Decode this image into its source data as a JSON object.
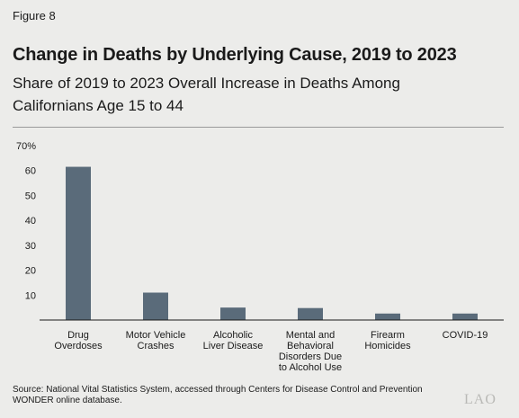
{
  "figure_label": "Figure 8",
  "title": "Change in Deaths by Underlying Cause, 2019 to 2023",
  "subtitle": "Share of 2019 to 2023 Overall Increase in Deaths Among Californians Age 15 to 44",
  "source": "Source: National Vital Statistics System, accessed through Centers for Disease Control and Prevention WONDER online database.",
  "logo_text": "LAO",
  "colors": {
    "bar": "#5a6b7a",
    "background": "#ececea",
    "axis": "#1a1a1a"
  },
  "chart_data": {
    "type": "bar",
    "title": "",
    "xlabel": "",
    "ylabel": "",
    "ylim": [
      0,
      70
    ],
    "yticks": [
      "70%",
      "60",
      "50",
      "40",
      "30",
      "20",
      "10"
    ],
    "ytick_values": [
      70,
      60,
      50,
      40,
      30,
      20,
      10
    ],
    "categories": [
      [
        "Drug",
        "Overdoses"
      ],
      [
        "Motor Vehicle",
        "Crashes"
      ],
      [
        "Alcoholic",
        "Liver Disease"
      ],
      [
        "Mental and",
        "Behavioral",
        "Disorders Due",
        "to Alcohol Use"
      ],
      [
        "Firearm",
        "Homicides"
      ],
      [
        "COVID-19"
      ]
    ],
    "values": [
      61.5,
      11,
      5,
      4.8,
      2.6,
      2.6
    ],
    "grid": false,
    "legend": "none"
  }
}
